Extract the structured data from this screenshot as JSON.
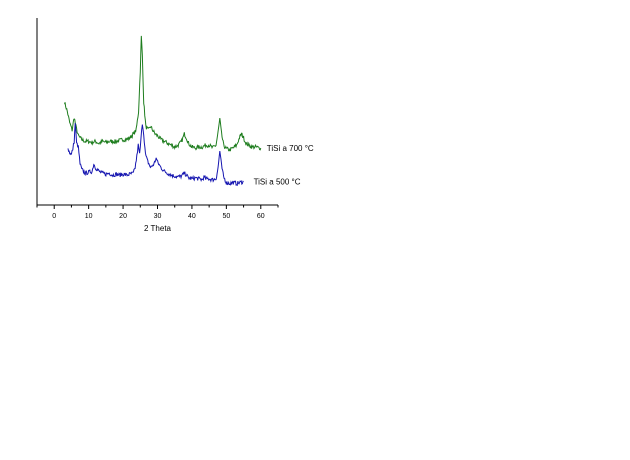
{
  "chart_data": {
    "type": "line",
    "title": "",
    "xlabel": "2 Theta",
    "ylabel": "",
    "xlim": [
      -5,
      65
    ],
    "ylim": [
      0,
      100
    ],
    "xticks": [
      0,
      10,
      20,
      30,
      40,
      50,
      60
    ],
    "grid": false,
    "legend": "none",
    "series": [
      {
        "name": "TiSi a 700 °C",
        "color": "#1e7d1e",
        "points": [
          [
            3,
            55
          ],
          [
            3.8,
            50
          ],
          [
            4.5,
            44
          ],
          [
            5.2,
            40
          ],
          [
            5.8,
            47
          ],
          [
            6.3,
            42
          ],
          [
            7,
            37
          ],
          [
            8,
            35
          ],
          [
            9,
            34
          ],
          [
            10,
            34
          ],
          [
            11,
            33.5
          ],
          [
            12,
            34
          ],
          [
            13,
            33
          ],
          [
            14,
            34
          ],
          [
            15,
            33.5
          ],
          [
            16,
            34
          ],
          [
            17,
            34
          ],
          [
            18,
            34
          ],
          [
            19,
            34.5
          ],
          [
            20,
            35
          ],
          [
            21,
            35
          ],
          [
            22,
            36
          ],
          [
            23,
            38
          ],
          [
            23.8,
            40
          ],
          [
            24.5,
            50
          ],
          [
            25,
            72
          ],
          [
            25.3,
            90
          ],
          [
            25.6,
            80
          ],
          [
            26,
            55
          ],
          [
            26.6,
            42
          ],
          [
            27.3,
            40
          ],
          [
            28,
            42
          ],
          [
            28.6,
            40
          ],
          [
            29.3,
            38
          ],
          [
            30,
            37
          ],
          [
            31,
            35
          ],
          [
            32,
            34
          ],
          [
            33,
            33
          ],
          [
            34,
            32
          ],
          [
            35,
            31
          ],
          [
            36,
            32
          ],
          [
            37,
            34
          ],
          [
            37.8,
            38
          ],
          [
            38.4,
            36
          ],
          [
            39,
            33
          ],
          [
            40,
            31
          ],
          [
            41,
            30.5
          ],
          [
            42,
            31
          ],
          [
            43,
            31
          ],
          [
            44,
            32
          ],
          [
            45,
            32
          ],
          [
            46,
            30.5
          ],
          [
            47,
            32
          ],
          [
            47.6,
            39
          ],
          [
            48.1,
            46
          ],
          [
            48.6,
            38
          ],
          [
            49.2,
            32
          ],
          [
            50,
            30
          ],
          [
            51,
            29.5
          ],
          [
            52,
            30.5
          ],
          [
            53,
            32
          ],
          [
            53.8,
            36
          ],
          [
            54.4,
            38
          ],
          [
            55,
            36
          ],
          [
            55.7,
            33
          ],
          [
            56.5,
            32
          ],
          [
            57.5,
            31
          ],
          [
            58.5,
            31
          ],
          [
            59.5,
            30.5
          ],
          [
            60,
            30.5
          ]
        ]
      },
      {
        "name": "TiSi a 500 °C",
        "color": "#1515b0",
        "points": [
          [
            4,
            30
          ],
          [
            4.5,
            28
          ],
          [
            5,
            27
          ],
          [
            5.4,
            30
          ],
          [
            5.8,
            34
          ],
          [
            6.1,
            44
          ],
          [
            6.5,
            33
          ],
          [
            7,
            31
          ],
          [
            7.5,
            22
          ],
          [
            8,
            19
          ],
          [
            9,
            17
          ],
          [
            10,
            17.5
          ],
          [
            11,
            18
          ],
          [
            11.5,
            22
          ],
          [
            12,
            20
          ],
          [
            13,
            18
          ],
          [
            14,
            17
          ],
          [
            15,
            16.5
          ],
          [
            16,
            17
          ],
          [
            17,
            16
          ],
          [
            18,
            16.5
          ],
          [
            19,
            16
          ],
          [
            20,
            16.5
          ],
          [
            21,
            16
          ],
          [
            22,
            16.5
          ],
          [
            23,
            17
          ],
          [
            23.5,
            20
          ],
          [
            24,
            26
          ],
          [
            24.4,
            32
          ],
          [
            24.8,
            27
          ],
          [
            25.2,
            35
          ],
          [
            25.6,
            44
          ],
          [
            26,
            38
          ],
          [
            26.5,
            27
          ],
          [
            27,
            24
          ],
          [
            27.5,
            22
          ],
          [
            28,
            20
          ],
          [
            28.5,
            21
          ],
          [
            29,
            22
          ],
          [
            29.6,
            25
          ],
          [
            30,
            23
          ],
          [
            31,
            20
          ],
          [
            32,
            18
          ],
          [
            33,
            17
          ],
          [
            34,
            16
          ],
          [
            35,
            15.5
          ],
          [
            36,
            15
          ],
          [
            37,
            15.5
          ],
          [
            37.8,
            17
          ],
          [
            38.4,
            16
          ],
          [
            39,
            14.5
          ],
          [
            40,
            14
          ],
          [
            41,
            14.5
          ],
          [
            42,
            14
          ],
          [
            43,
            13.5
          ],
          [
            43.5,
            15
          ],
          [
            44,
            14
          ],
          [
            45,
            14
          ],
          [
            46,
            13.5
          ],
          [
            47,
            14
          ],
          [
            47.6,
            20
          ],
          [
            48.1,
            29
          ],
          [
            48.6,
            21
          ],
          [
            49.2,
            15
          ],
          [
            50,
            12
          ],
          [
            51,
            11.5
          ],
          [
            52,
            12
          ],
          [
            53,
            11.5
          ],
          [
            54,
            12
          ],
          [
            55,
            12.5
          ]
        ]
      }
    ]
  }
}
